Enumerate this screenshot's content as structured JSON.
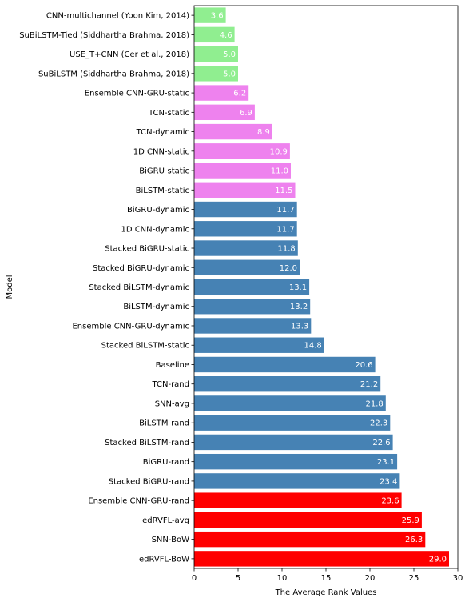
{
  "chart_data": {
    "type": "bar",
    "orientation": "horizontal",
    "xlabel": "The Average Rank Values",
    "ylabel": "Model",
    "xlim": [
      0,
      30
    ],
    "xticks": [
      0,
      5,
      10,
      15,
      20,
      25,
      30
    ],
    "grid": false,
    "categories": [
      "CNN-multichannel (Yoon Kim, 2014)",
      "SuBiLSTM-Tied (Siddhartha Brahma, 2018)",
      "USE_T+CNN (Cer et al., 2018)",
      "SuBiLSTM (Siddhartha Brahma, 2018)",
      "Ensemble CNN-GRU-static",
      "TCN-static",
      "TCN-dynamic",
      "1D CNN-static",
      "BiGRU-static",
      "BiLSTM-static",
      "BiGRU-dynamic",
      "1D CNN-dynamic",
      "Stacked BiGRU-static",
      "Stacked BiGRU-dynamic",
      "Stacked BiLSTM-dynamic",
      "BiLSTM-dynamic",
      "Ensemble CNN-GRU-dynamic",
      "Stacked BiLSTM-static",
      "Baseline",
      "TCN-rand",
      "SNN-avg",
      "BiLSTM-rand",
      "Stacked BiLSTM-rand",
      "BiGRU-rand",
      "Stacked BiGRU-rand",
      "Ensemble CNN-GRU-rand",
      "edRVFL-avg",
      "SNN-BoW",
      "edRVFL-BoW"
    ],
    "values": [
      3.6,
      4.6,
      5.0,
      5.0,
      6.2,
      6.9,
      8.9,
      10.9,
      11.0,
      11.5,
      11.7,
      11.7,
      11.8,
      12.0,
      13.1,
      13.2,
      13.3,
      14.8,
      20.6,
      21.2,
      21.8,
      22.3,
      22.6,
      23.1,
      23.4,
      23.6,
      25.9,
      26.3,
      29.0
    ],
    "value_labels": [
      "3.6",
      "4.6",
      "5.0",
      "5.0",
      "6.2",
      "6.9",
      "8.9",
      "10.9",
      "11.0",
      "11.5",
      "11.7",
      "11.7",
      "11.8",
      "12.0",
      "13.1",
      "13.2",
      "13.3",
      "14.8",
      "20.6",
      "21.2",
      "21.8",
      "22.3",
      "22.6",
      "23.1",
      "23.4",
      "23.6",
      "25.9",
      "26.3",
      "29.0"
    ],
    "colors": [
      "#90ee90",
      "#90ee90",
      "#90ee90",
      "#90ee90",
      "#ee82ee",
      "#ee82ee",
      "#ee82ee",
      "#ee82ee",
      "#ee82ee",
      "#ee82ee",
      "#4682b4",
      "#4682b4",
      "#4682b4",
      "#4682b4",
      "#4682b4",
      "#4682b4",
      "#4682b4",
      "#4682b4",
      "#4682b4",
      "#4682b4",
      "#4682b4",
      "#4682b4",
      "#4682b4",
      "#4682b4",
      "#4682b4",
      "#ff0000",
      "#ff0000",
      "#ff0000",
      "#ff0000"
    ]
  }
}
